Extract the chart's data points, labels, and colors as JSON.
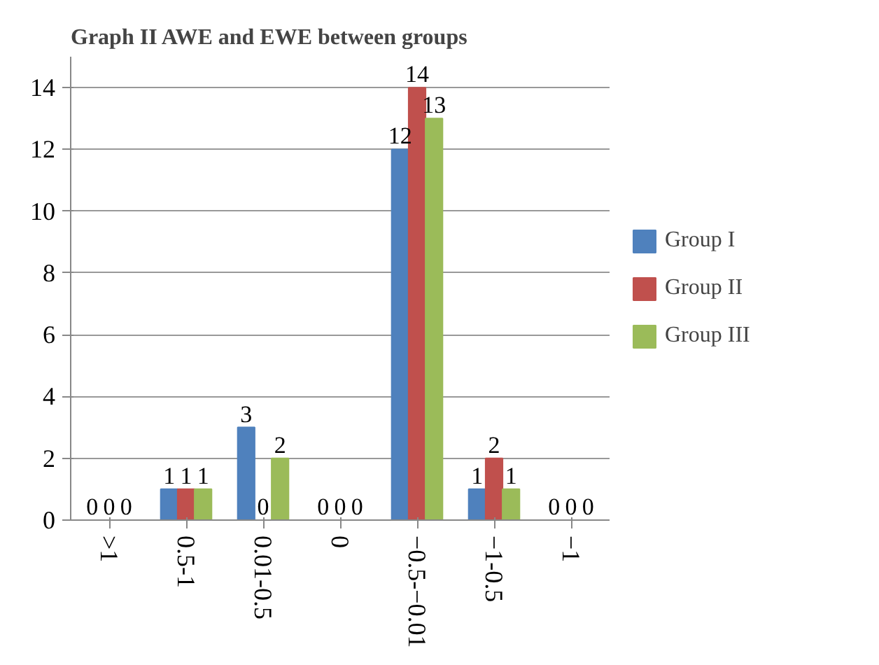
{
  "chart_data": {
    "type": "bar",
    "title": "Graph II AWE and EWE between groups",
    "categories": [
      ">1",
      "0.5-1",
      "0.01-0.5",
      "0",
      "−0.5-−0.01",
      "−1-0.5",
      "−1"
    ],
    "series": [
      {
        "name": "Group I",
        "color": "#4f81bd",
        "values": [
          0,
          1,
          3,
          0,
          12,
          1,
          0
        ]
      },
      {
        "name": "Group II",
        "color": "#c0504d",
        "values": [
          0,
          1,
          0,
          0,
          14,
          2,
          0
        ]
      },
      {
        "name": "Group III",
        "color": "#9bbb59",
        "values": [
          0,
          1,
          2,
          0,
          13,
          1,
          0
        ]
      }
    ],
    "ylim": [
      0,
      15
    ],
    "yticks": [
      0,
      2,
      4,
      6,
      8,
      10,
      12,
      14
    ],
    "grid": "y",
    "legend": "right",
    "data_labels": true
  }
}
